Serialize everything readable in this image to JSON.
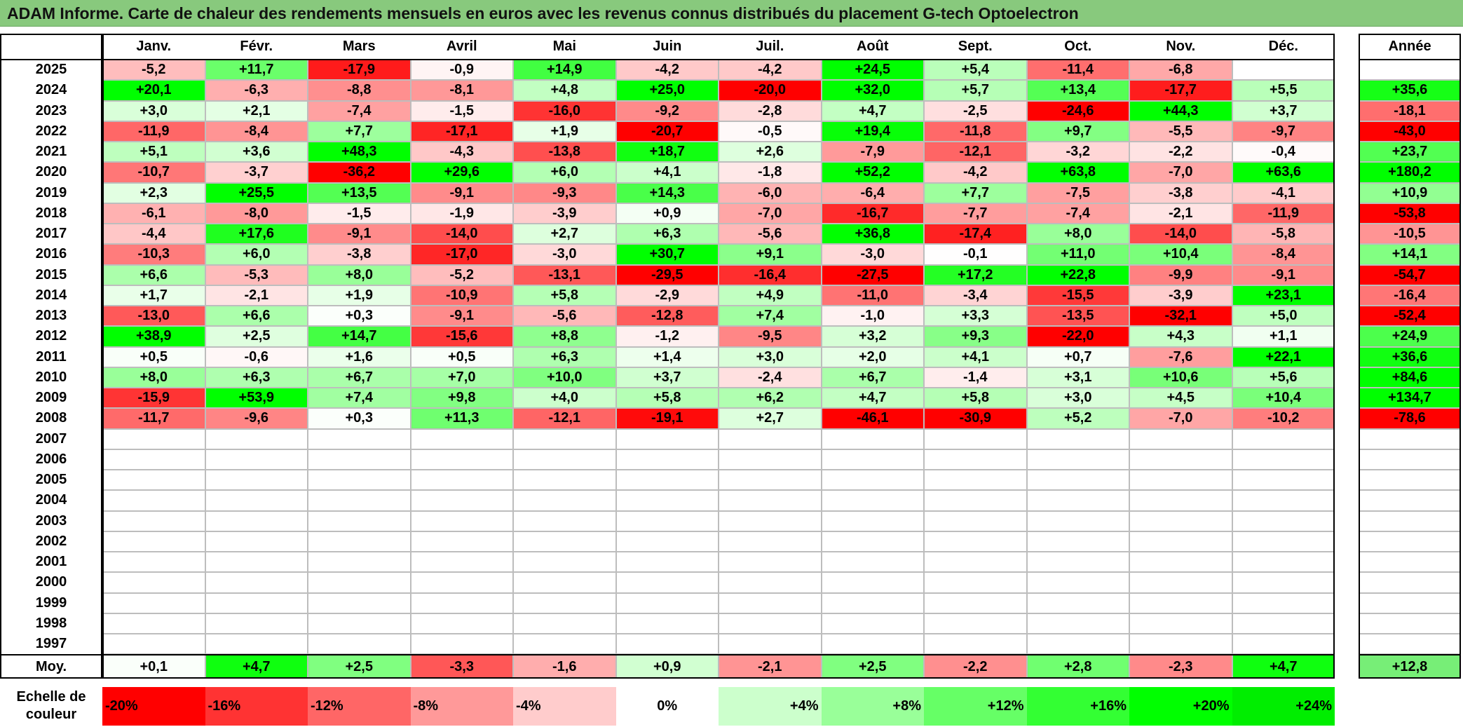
{
  "title": "ADAM Informe. Carte de chaleur des rendements mensuels en euros avec les revenus connus distribués du placement G-tech Optoelectron",
  "year_header": "Année",
  "avg_label": "Moy.",
  "scale_label_line1": "Echelle de",
  "scale_label_line2": "couleur",
  "chart_data": {
    "type": "heatmap",
    "title": "ADAM Informe. Carte de chaleur des rendements mensuels en euros avec les revenus connus distribués du placement G-tech Optoelectron",
    "columns": [
      "Janv.",
      "Févr.",
      "Mars",
      "Avril",
      "Mai",
      "Juin",
      "Juil.",
      "Août",
      "Sept.",
      "Oct.",
      "Nov.",
      "Déc."
    ],
    "rows": [
      {
        "year": "2025",
        "values": [
          "-5,2",
          "+11,7",
          "-17,9",
          "-0,9",
          "+14,9",
          "-4,2",
          "-4,2",
          "+24,5",
          "+5,4",
          "-11,4",
          "-6,8",
          ""
        ],
        "annual": ""
      },
      {
        "year": "2024",
        "values": [
          "+20,1",
          "-6,3",
          "-8,8",
          "-8,1",
          "+4,8",
          "+25,0",
          "-20,0",
          "+32,0",
          "+5,7",
          "+13,4",
          "-17,7",
          "+5,5"
        ],
        "annual": "+35,6"
      },
      {
        "year": "2023",
        "values": [
          "+3,0",
          "+2,1",
          "-7,4",
          "-1,5",
          "-16,0",
          "-9,2",
          "-2,8",
          "+4,7",
          "-2,5",
          "-24,6",
          "+44,3",
          "+3,7"
        ],
        "annual": "-18,1"
      },
      {
        "year": "2022",
        "values": [
          "-11,9",
          "-8,4",
          "+7,7",
          "-17,1",
          "+1,9",
          "-20,7",
          "-0,5",
          "+19,4",
          "-11,8",
          "+9,7",
          "-5,5",
          "-9,7"
        ],
        "annual": "-43,0"
      },
      {
        "year": "2021",
        "values": [
          "+5,1",
          "+3,6",
          "+48,3",
          "-4,3",
          "-13,8",
          "+18,7",
          "+2,6",
          "-7,9",
          "-12,1",
          "-3,2",
          "-2,2",
          "-0,4"
        ],
        "annual": "+23,7"
      },
      {
        "year": "2020",
        "values": [
          "-10,7",
          "-3,7",
          "-36,2",
          "+29,6",
          "+6,0",
          "+4,1",
          "-1,8",
          "+52,2",
          "-4,2",
          "+63,8",
          "-7,0",
          "+63,6"
        ],
        "annual": "+180,2"
      },
      {
        "year": "2019",
        "values": [
          "+2,3",
          "+25,5",
          "+13,5",
          "-9,1",
          "-9,3",
          "+14,3",
          "-6,0",
          "-6,4",
          "+7,7",
          "-7,5",
          "-3,8",
          "-4,1"
        ],
        "annual": "+10,9"
      },
      {
        "year": "2018",
        "values": [
          "-6,1",
          "-8,0",
          "-1,5",
          "-1,9",
          "-3,9",
          "+0,9",
          "-7,0",
          "-16,7",
          "-7,7",
          "-7,4",
          "-2,1",
          "-11,9"
        ],
        "annual": "-53,8"
      },
      {
        "year": "2017",
        "values": [
          "-4,4",
          "+17,6",
          "-9,1",
          "-14,0",
          "+2,7",
          "+6,3",
          "-5,6",
          "+36,8",
          "-17,4",
          "+8,0",
          "-14,0",
          "-5,8"
        ],
        "annual": "-10,5"
      },
      {
        "year": "2016",
        "values": [
          "-10,3",
          "+6,0",
          "-3,8",
          "-17,0",
          "-3,0",
          "+30,7",
          "+9,1",
          "-3,0",
          "-0,1",
          "+11,0",
          "+10,4",
          "-8,4"
        ],
        "annual": "+14,1"
      },
      {
        "year": "2015",
        "values": [
          "+6,6",
          "-5,3",
          "+8,0",
          "-5,2",
          "-13,1",
          "-29,5",
          "-16,4",
          "-27,5",
          "+17,2",
          "+22,8",
          "-9,9",
          "-9,1"
        ],
        "annual": "-54,7"
      },
      {
        "year": "2014",
        "values": [
          "+1,7",
          "-2,1",
          "+1,9",
          "-10,9",
          "+5,8",
          "-2,9",
          "+4,9",
          "-11,0",
          "-3,4",
          "-15,5",
          "-3,9",
          "+23,1"
        ],
        "annual": "-16,4"
      },
      {
        "year": "2013",
        "values": [
          "-13,0",
          "+6,6",
          "+0,3",
          "-9,1",
          "-5,6",
          "-12,8",
          "+7,4",
          "-1,0",
          "+3,3",
          "-13,5",
          "-32,1",
          "+5,0"
        ],
        "annual": "-52,4"
      },
      {
        "year": "2012",
        "values": [
          "+38,9",
          "+2,5",
          "+14,7",
          "-15,6",
          "+8,8",
          "-1,2",
          "-9,5",
          "+3,2",
          "+9,3",
          "-22,0",
          "+4,3",
          "+1,1"
        ],
        "annual": "+24,9"
      },
      {
        "year": "2011",
        "values": [
          "+0,5",
          "-0,6",
          "+1,6",
          "+0,5",
          "+6,3",
          "+1,4",
          "+3,0",
          "+2,0",
          "+4,1",
          "+0,7",
          "-7,6",
          "+22,1"
        ],
        "annual": "+36,6"
      },
      {
        "year": "2010",
        "values": [
          "+8,0",
          "+6,3",
          "+6,7",
          "+7,0",
          "+10,0",
          "+3,7",
          "-2,4",
          "+6,7",
          "-1,4",
          "+3,1",
          "+10,6",
          "+5,6"
        ],
        "annual": "+84,6"
      },
      {
        "year": "2009",
        "values": [
          "-15,9",
          "+53,9",
          "+7,4",
          "+9,8",
          "+4,0",
          "+5,8",
          "+6,2",
          "+4,7",
          "+5,8",
          "+3,0",
          "+4,5",
          "+10,4"
        ],
        "annual": "+134,7"
      },
      {
        "year": "2008",
        "values": [
          "-11,7",
          "-9,6",
          "+0,3",
          "+11,3",
          "-12,1",
          "-19,1",
          "+2,7",
          "-46,1",
          "-30,9",
          "+5,2",
          "-7,0",
          "-10,2"
        ],
        "annual": "-78,6"
      },
      {
        "year": "2007",
        "values": [
          "",
          "",
          "",
          "",
          "",
          "",
          "",
          "",
          "",
          "",
          "",
          ""
        ],
        "annual": ""
      },
      {
        "year": "2006",
        "values": [
          "",
          "",
          "",
          "",
          "",
          "",
          "",
          "",
          "",
          "",
          "",
          ""
        ],
        "annual": ""
      },
      {
        "year": "2005",
        "values": [
          "",
          "",
          "",
          "",
          "",
          "",
          "",
          "",
          "",
          "",
          "",
          ""
        ],
        "annual": ""
      },
      {
        "year": "2004",
        "values": [
          "",
          "",
          "",
          "",
          "",
          "",
          "",
          "",
          "",
          "",
          "",
          ""
        ],
        "annual": ""
      },
      {
        "year": "2003",
        "values": [
          "",
          "",
          "",
          "",
          "",
          "",
          "",
          "",
          "",
          "",
          "",
          ""
        ],
        "annual": ""
      },
      {
        "year": "2002",
        "values": [
          "",
          "",
          "",
          "",
          "",
          "",
          "",
          "",
          "",
          "",
          "",
          ""
        ],
        "annual": ""
      },
      {
        "year": "2001",
        "values": [
          "",
          "",
          "",
          "",
          "",
          "",
          "",
          "",
          "",
          "",
          "",
          ""
        ],
        "annual": ""
      },
      {
        "year": "2000",
        "values": [
          "",
          "",
          "",
          "",
          "",
          "",
          "",
          "",
          "",
          "",
          "",
          ""
        ],
        "annual": ""
      },
      {
        "year": "1999",
        "values": [
          "",
          "",
          "",
          "",
          "",
          "",
          "",
          "",
          "",
          "",
          "",
          ""
        ],
        "annual": ""
      },
      {
        "year": "1998",
        "values": [
          "",
          "",
          "",
          "",
          "",
          "",
          "",
          "",
          "",
          "",
          "",
          ""
        ],
        "annual": ""
      },
      {
        "year": "1997",
        "values": [
          "",
          "",
          "",
          "",
          "",
          "",
          "",
          "",
          "",
          "",
          "",
          ""
        ],
        "annual": ""
      }
    ],
    "averages": [
      "+0,1",
      "+4,7",
      "+2,5",
      "-3,3",
      "-1,6",
      "+0,9",
      "-2,1",
      "+2,5",
      "-2,2",
      "+2,8",
      "-2,3",
      "+4,7"
    ],
    "average_annual": "+12,8",
    "color_scale": [
      {
        "label": "-20%",
        "value": -20,
        "color": "#ff0000"
      },
      {
        "label": "-16%",
        "value": -16,
        "color": "#ff3333"
      },
      {
        "label": "-12%",
        "value": -12,
        "color": "#ff6666"
      },
      {
        "label": "-8%",
        "value": -8,
        "color": "#ff9999"
      },
      {
        "label": "-4%",
        "value": -4,
        "color": "#ffcccc"
      },
      {
        "label": "0%",
        "value": 0,
        "color": "#ffffff"
      },
      {
        "label": "+4%",
        "value": 4,
        "color": "#ccffcc"
      },
      {
        "label": "+8%",
        "value": 8,
        "color": "#99ff99"
      },
      {
        "label": "+12%",
        "value": 12,
        "color": "#66ff66"
      },
      {
        "label": "+16%",
        "value": 16,
        "color": "#33ff33"
      },
      {
        "label": "+20%",
        "value": 20,
        "color": "#00ff00"
      },
      {
        "label": "+24%",
        "value": 24,
        "color": "#00ee00"
      }
    ]
  }
}
